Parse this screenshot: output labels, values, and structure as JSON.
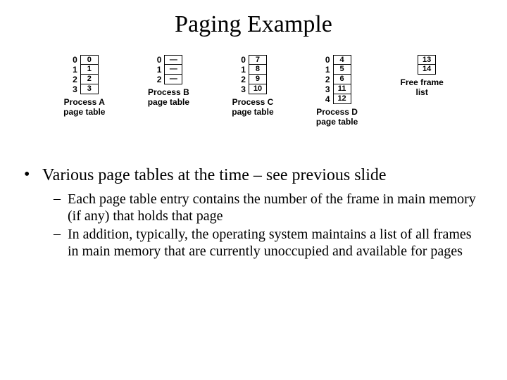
{
  "title": "Paging Example",
  "page_tables": [
    {
      "caption_top": "Process A",
      "caption_bottom": "page table",
      "rows": [
        {
          "idx": "0",
          "val": "0"
        },
        {
          "idx": "1",
          "val": "1"
        },
        {
          "idx": "2",
          "val": "2"
        },
        {
          "idx": "3",
          "val": "3"
        }
      ]
    },
    {
      "caption_top": "Process B",
      "caption_bottom": "page table",
      "rows": [
        {
          "idx": "0",
          "val": "—"
        },
        {
          "idx": "1",
          "val": "—"
        },
        {
          "idx": "2",
          "val": "—"
        }
      ]
    },
    {
      "caption_top": "Process C",
      "caption_bottom": "page table",
      "rows": [
        {
          "idx": "0",
          "val": "7"
        },
        {
          "idx": "1",
          "val": "8"
        },
        {
          "idx": "2",
          "val": "9"
        },
        {
          "idx": "3",
          "val": "10"
        }
      ]
    },
    {
      "caption_top": "Process D",
      "caption_bottom": "page table",
      "rows": [
        {
          "idx": "0",
          "val": "4"
        },
        {
          "idx": "1",
          "val": "5"
        },
        {
          "idx": "2",
          "val": "6"
        },
        {
          "idx": "3",
          "val": "11"
        },
        {
          "idx": "4",
          "val": "12"
        }
      ]
    },
    {
      "caption_top": "Free frame",
      "caption_bottom": "list",
      "rows": [
        {
          "idx": "",
          "val": "13"
        },
        {
          "idx": "",
          "val": "14"
        }
      ]
    }
  ],
  "bullet_main": "Various page tables at the time – see previous slide",
  "sub_bullets": [
    "Each page table entry contains the number of the frame in main memory (if any) that holds that page",
    "In addition, typically, the operating system maintains a list of all frames in main memory that are currently unoccupied and available for pages"
  ],
  "colors": {
    "background": "#ffffff",
    "text": "#000000",
    "cell_border": "#000000"
  },
  "fonts": {
    "body": "Times New Roman",
    "diagram": "Arial",
    "title_size_pt": 34,
    "bullet_size_pt": 24,
    "sub_size_pt": 20,
    "diagram_size_pt": 12
  }
}
